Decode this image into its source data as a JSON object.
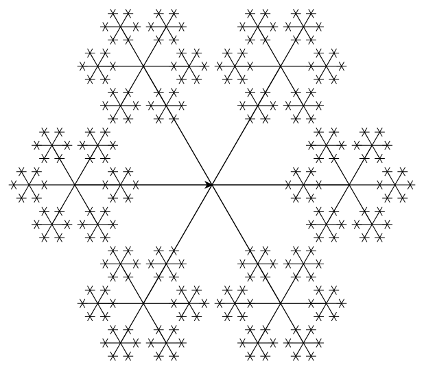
{
  "figure": {
    "type": "recursive-hexaflake-fractal",
    "branches_per_node": 6,
    "recursion_levels": 4,
    "center_marker": "arrowhead-pointing-right",
    "colors": {
      "background": "#ffffff",
      "stroke": "#000000"
    }
  }
}
